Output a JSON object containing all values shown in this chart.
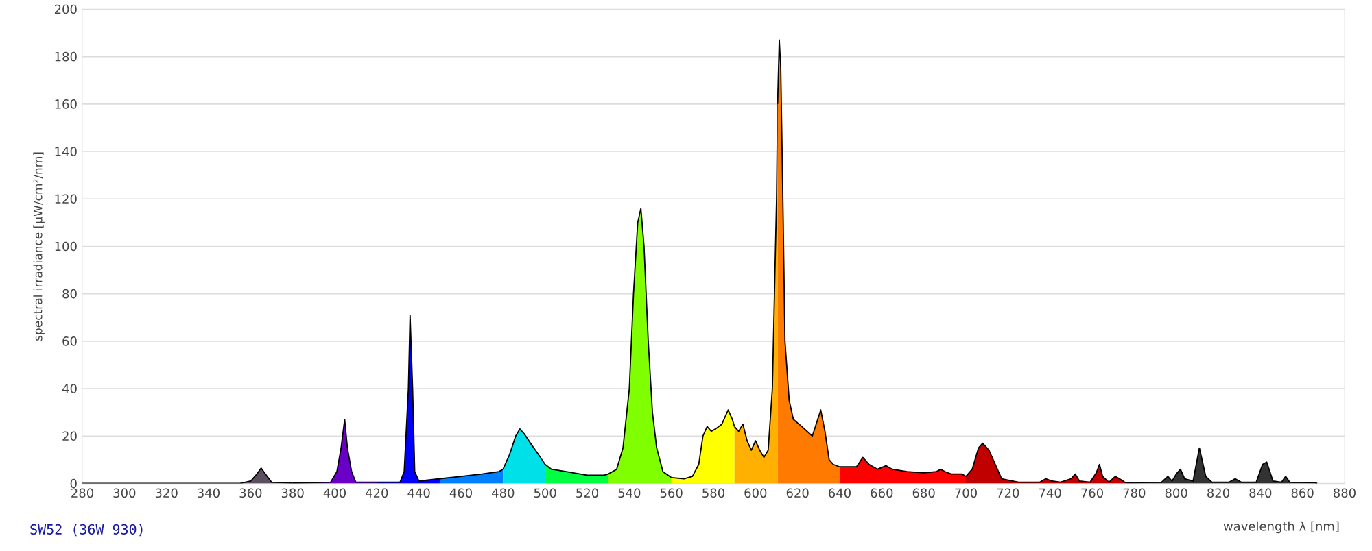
{
  "chart_data": {
    "type": "area",
    "title": "SW52 (36W 930)",
    "xlabel": "wavelength λ [nm]",
    "ylabel": "spectral irradiance [µW/cm²/nm]",
    "xlim": [
      280,
      880
    ],
    "ylim": [
      0,
      200
    ],
    "xticks": [
      280,
      300,
      320,
      340,
      360,
      380,
      400,
      420,
      440,
      460,
      480,
      500,
      520,
      540,
      560,
      580,
      600,
      620,
      640,
      660,
      680,
      700,
      720,
      740,
      760,
      780,
      800,
      820,
      840,
      860,
      880
    ],
    "yticks": [
      0,
      20,
      40,
      60,
      80,
      100,
      120,
      140,
      160,
      180,
      200
    ],
    "grid": "y",
    "series": [
      {
        "color": "#5a5060",
        "x": [
          280,
          355,
          360,
          363,
          365,
          367,
          370,
          380
        ],
        "values": [
          0,
          0,
          1,
          4,
          6.5,
          4,
          0.5,
          0.2
        ]
      },
      {
        "color": "#6a00c8",
        "x": [
          380,
          398,
          401,
          403,
          404.7,
          406,
          408,
          410,
          420
        ],
        "values": [
          0.2,
          0.5,
          5,
          15,
          27,
          15,
          5,
          0.5,
          0.5
        ]
      },
      {
        "color": "#0000ff",
        "x": [
          420,
          431,
          433,
          435,
          435.8,
          437,
          438,
          440,
          450
        ],
        "values": [
          0.5,
          0.5,
          5,
          40,
          71,
          40,
          5,
          1,
          2
        ]
      },
      {
        "color": "#0080ff",
        "x": [
          450,
          460,
          470,
          478,
          480
        ],
        "values": [
          2,
          3,
          4,
          5,
          6
        ]
      },
      {
        "color": "#00e0e8",
        "x": [
          480,
          483,
          486,
          488,
          490,
          493,
          497,
          500
        ],
        "values": [
          6,
          12,
          20,
          23,
          21,
          17,
          12,
          8
        ]
      },
      {
        "color": "#00ff40",
        "x": [
          500,
          503,
          510,
          520,
          528,
          530
        ],
        "values": [
          8,
          6,
          5,
          3.5,
          3.5,
          4
        ]
      },
      {
        "color": "#80ff00",
        "x": [
          530,
          534,
          537,
          540,
          542,
          544,
          545.5,
          547,
          549,
          551,
          553,
          556,
          560
        ],
        "values": [
          4,
          6,
          15,
          40,
          80,
          110,
          116,
          100,
          60,
          30,
          15,
          5,
          2.5
        ]
      },
      {
        "color": "#ffff00",
        "x": [
          560,
          566,
          570,
          573,
          575,
          577,
          579,
          581,
          584,
          587,
          589,
          590
        ],
        "values": [
          2.5,
          2,
          3,
          8,
          20,
          24,
          22,
          23,
          25,
          31,
          27,
          24
        ]
      },
      {
        "color": "#ffb000",
        "x": [
          590,
          592,
          594,
          596,
          598,
          600,
          602,
          604,
          606,
          608,
          610,
          610.5
        ],
        "values": [
          24,
          22,
          25,
          18,
          14,
          18,
          14,
          11,
          14,
          40,
          120,
          160
        ]
      },
      {
        "color": "#ff7a00",
        "x": [
          610.5,
          611.3,
          612,
          613,
          614,
          616,
          618,
          622,
          627,
          631,
          633,
          635,
          637,
          640
        ],
        "values": [
          160,
          187,
          175,
          120,
          60,
          35,
          27,
          24,
          20,
          31,
          22,
          10,
          8,
          7
        ]
      },
      {
        "color": "#ff0000",
        "x": [
          640,
          648,
          651,
          654,
          658,
          662,
          665,
          672,
          680,
          686,
          688,
          690,
          693,
          698,
          700
        ],
        "values": [
          7,
          7,
          11,
          8,
          6,
          7.5,
          6,
          5,
          4.5,
          5,
          6,
          5,
          4,
          4,
          3
        ]
      },
      {
        "color": "#c00000",
        "x": [
          700,
          703,
          706,
          708,
          711,
          714,
          717,
          725,
          735,
          738,
          741,
          745,
          750,
          752,
          754,
          759,
          762,
          763.5,
          765,
          768,
          771,
          773,
          776,
          780
        ],
        "values": [
          3,
          6,
          15,
          17,
          14,
          8,
          2,
          0.5,
          0.5,
          2,
          1,
          0.5,
          2,
          4,
          1,
          0.5,
          4.5,
          8,
          3,
          0.5,
          3,
          2,
          0.3,
          0.3
        ]
      },
      {
        "color": "#333333",
        "x": [
          780,
          793,
          796,
          798,
          800,
          802,
          804,
          808,
          811,
          814,
          817,
          825,
          828,
          831,
          838,
          841,
          843,
          846,
          850,
          852,
          854,
          866,
          867
        ],
        "values": [
          0.3,
          0.5,
          3,
          1,
          4,
          6,
          2,
          1,
          15,
          3,
          0.5,
          0.5,
          2,
          0.5,
          0.5,
          8,
          9,
          1,
          0.5,
          3,
          0.5,
          0.3,
          0
        ]
      }
    ]
  }
}
